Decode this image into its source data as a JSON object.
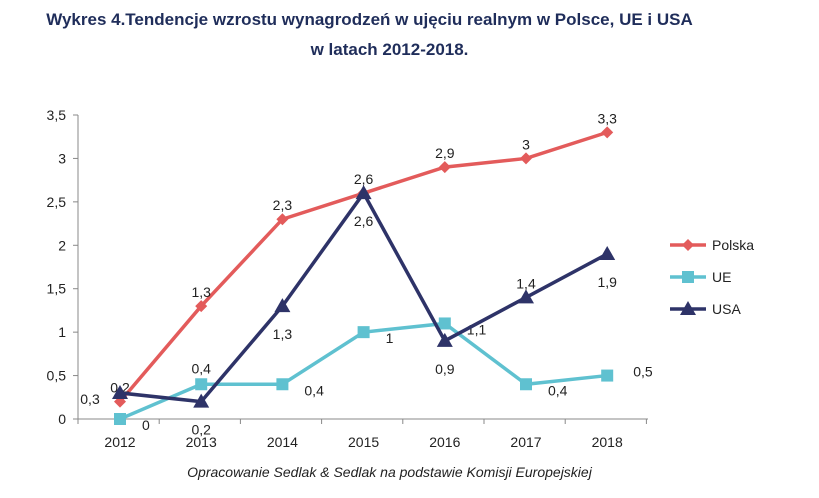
{
  "chart_data": {
    "type": "line",
    "title": "Wykres 4.Tendencje wzrostu wynagrodzeń w ujęciu realnym w Polsce, UE i USA",
    "subtitle": "w latach 2012-2018.",
    "source": "Opracowanie Sedlak & Sedlak na podstawie Komisji Europejskiej",
    "categories": [
      "2012",
      "2013",
      "2014",
      "2015",
      "2016",
      "2017",
      "2018"
    ],
    "y_ticks": [
      "0",
      "0,5",
      "1",
      "1,5",
      "2",
      "2,5",
      "3",
      "3,5"
    ],
    "ylim": [
      0,
      3.5
    ],
    "grid": false,
    "legend_position": "right",
    "series": [
      {
        "name": "Polska",
        "color": "#e35b5b",
        "marker": "diamond",
        "values": [
          0.2,
          1.3,
          2.3,
          2.6,
          2.9,
          3,
          3.3
        ],
        "labels": [
          "0,2",
          "1,3",
          "2,3",
          "2,6",
          "2,9",
          "3",
          "3,3"
        ]
      },
      {
        "name": "UE",
        "color": "#5fc1d0",
        "marker": "square",
        "values": [
          0,
          0.4,
          0.4,
          1,
          1.1,
          0.4,
          0.5
        ],
        "labels": [
          "0",
          "0,4",
          "0,4",
          "1",
          "1,1",
          "0,4",
          "0,5"
        ]
      },
      {
        "name": "USA",
        "color": "#2e3368",
        "marker": "triangle",
        "values": [
          0.3,
          0.2,
          1.3,
          2.6,
          0.9,
          1.4,
          1.9
        ],
        "labels": [
          "0,3",
          "0,2",
          "1,3",
          "2,6",
          "0,9",
          "1,4",
          "1,9"
        ]
      }
    ]
  }
}
